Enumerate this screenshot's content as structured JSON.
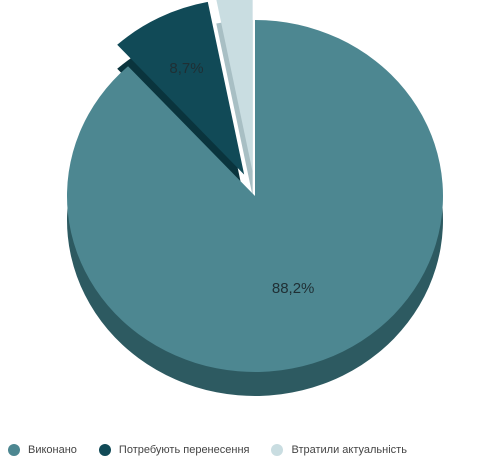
{
  "chart_data": {
    "type": "pie",
    "title": "",
    "labels": [
      "Виконано",
      "Потребують перенесення",
      "Втратили актуальність"
    ],
    "values": [
      88.2,
      8.7,
      3.1
    ],
    "data_labels": [
      "88,2%",
      "8,7%",
      ""
    ],
    "colors": [
      "#4d8791",
      "#114a57",
      "#c9dde1"
    ],
    "side_colors": [
      "#2d5a61",
      "#0a343d",
      "#a8bfc4"
    ],
    "exploded": [
      false,
      true,
      true
    ],
    "legend_position": "bottom"
  }
}
